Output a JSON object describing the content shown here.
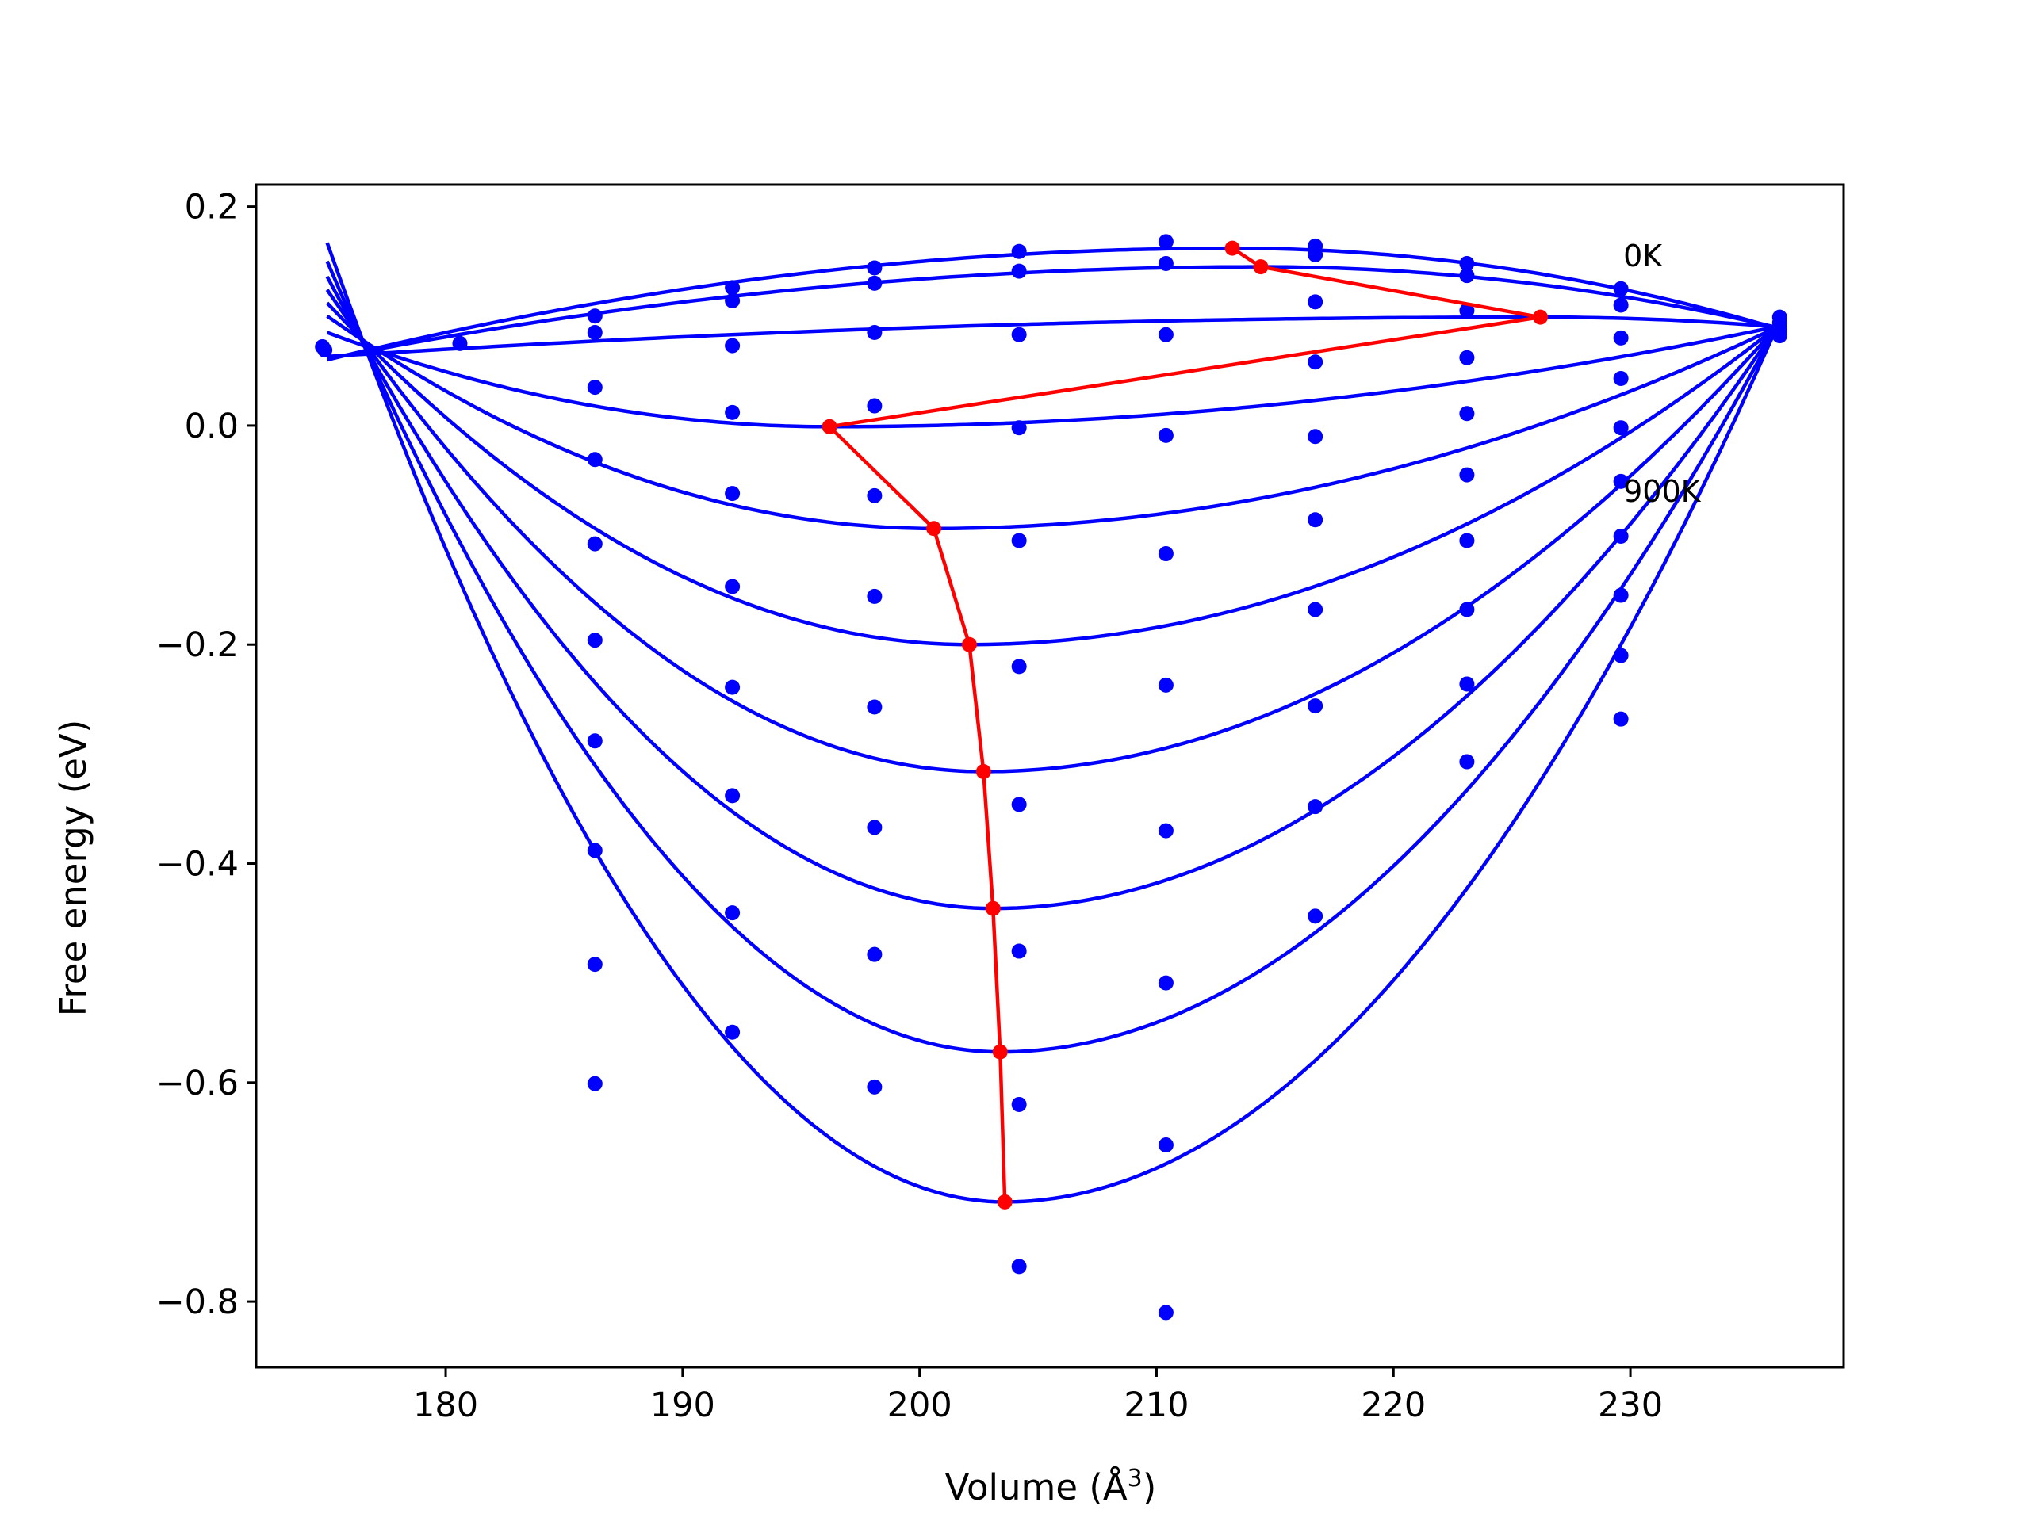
{
  "chart_data": {
    "type": "line",
    "title": "",
    "xlabel": "Volume (Å",
    "xlabel_sup": "3",
    "xlabel_close": ")",
    "ylabel": "Free energy (eV)",
    "xlim": [
      172,
      239
    ],
    "ylim": [
      -0.86,
      0.22
    ],
    "x_ticks": [
      180,
      190,
      200,
      210,
      220,
      230
    ],
    "y_ticks": [
      0.2,
      0.0,
      -0.2,
      -0.4,
      -0.6,
      -0.8
    ],
    "x_tick_labels": [
      "180",
      "190",
      "200",
      "210",
      "220",
      "230"
    ],
    "y_tick_labels": [
      "0.2",
      "0.0",
      "−0.2",
      "−0.4",
      "−0.6",
      "−0.8"
    ],
    "grid": false,
    "colors": {
      "curves": "#0000ff",
      "minima": "#ff0000",
      "frame": "#000000"
    },
    "annotations": [
      {
        "text": "0K",
        "x": 229.7,
        "y": 0.155
      },
      {
        "text": "900K",
        "x": 229.7,
        "y": -0.06
      }
    ],
    "fit_curves": [
      {
        "vmin": 213.2,
        "emin": 0.162,
        "left": [
          175.0,
          0.06
        ],
        "right": [
          236.3,
          0.088
        ]
      },
      {
        "vmin": 214.4,
        "emin": 0.145,
        "left": [
          175.0,
          0.061
        ],
        "right": [
          236.3,
          0.089
        ]
      },
      {
        "vmin": 226.2,
        "emin": 0.099,
        "left": [
          175.0,
          0.063
        ],
        "right": [
          236.3,
          0.09
        ]
      },
      {
        "vmin": 196.2,
        "emin": -0.001,
        "left": [
          175.0,
          0.085
        ],
        "right": [
          236.3,
          0.091
        ]
      },
      {
        "vmin": 200.6,
        "emin": -0.094,
        "left": [
          175.0,
          0.1
        ],
        "right": [
          236.3,
          0.091
        ]
      },
      {
        "vmin": 202.1,
        "emin": -0.2,
        "left": [
          175.0,
          0.112
        ],
        "right": [
          236.3,
          0.092
        ]
      },
      {
        "vmin": 202.7,
        "emin": -0.316,
        "left": [
          175.0,
          0.124
        ],
        "right": [
          236.3,
          0.093
        ]
      },
      {
        "vmin": 203.1,
        "emin": -0.441,
        "left": [
          175.0,
          0.136
        ],
        "right": [
          236.3,
          0.094
        ]
      },
      {
        "vmin": 203.4,
        "emin": -0.572,
        "left": [
          175.0,
          0.15
        ],
        "right": [
          236.3,
          0.095
        ]
      },
      {
        "vmin": 203.6,
        "emin": -0.709,
        "left": [
          175.0,
          0.167
        ],
        "right": [
          236.3,
          0.096
        ]
      }
    ],
    "minima_path": {
      "x": [
        213.2,
        214.4,
        226.2,
        196.2,
        200.6,
        202.1,
        202.7,
        203.1,
        203.4,
        203.6
      ],
      "y": [
        0.162,
        0.145,
        0.099,
        -0.001,
        -0.094,
        -0.2,
        -0.316,
        -0.441,
        -0.572,
        -0.709
      ]
    },
    "data_points": {
      "x": [
        174.8,
        174.9,
        180.6,
        186.3,
        186.3,
        186.3,
        186.3,
        186.3,
        186.3,
        186.3,
        186.3,
        186.3,
        186.3,
        192.1,
        192.1,
        192.1,
        192.1,
        192.1,
        192.1,
        192.1,
        192.1,
        192.1,
        192.1,
        198.1,
        198.1,
        198.1,
        198.1,
        198.1,
        198.1,
        198.1,
        198.1,
        198.1,
        198.1,
        204.2,
        204.2,
        204.2,
        204.2,
        204.2,
        204.2,
        204.2,
        204.2,
        204.2,
        204.2,
        210.4,
        210.4,
        210.4,
        210.4,
        210.4,
        210.4,
        210.4,
        210.4,
        210.4,
        210.4,
        216.7,
        216.7,
        216.7,
        216.7,
        216.7,
        216.7,
        216.7,
        216.7,
        216.7,
        216.7,
        223.1,
        223.1,
        223.1,
        223.1,
        223.1,
        223.1,
        223.1,
        223.1,
        223.1,
        223.1,
        229.6,
        229.6,
        229.6,
        229.6,
        229.6,
        229.6,
        229.6,
        229.6,
        229.6,
        229.6,
        236.3,
        236.3,
        236.3,
        236.3,
        236.3
      ],
      "y": [
        0.072,
        0.069,
        0.075,
        0.1,
        0.085,
        0.035,
        -0.031,
        -0.108,
        -0.196,
        -0.288,
        -0.388,
        -0.492,
        -0.601,
        0.126,
        0.114,
        0.073,
        0.012,
        -0.062,
        -0.147,
        -0.239,
        -0.338,
        -0.445,
        -0.554,
        0.144,
        0.13,
        0.085,
        0.018,
        -0.064,
        -0.156,
        -0.257,
        -0.367,
        -0.483,
        -0.604,
        0.159,
        0.141,
        0.083,
        -0.002,
        -0.105,
        -0.22,
        -0.346,
        -0.48,
        -0.62,
        -0.768,
        0.168,
        0.148,
        0.083,
        -0.009,
        -0.117,
        -0.237,
        -0.37,
        -0.509,
        -0.657,
        -0.81,
        0.164,
        0.156,
        0.113,
        0.058,
        -0.01,
        -0.086,
        -0.168,
        -0.256,
        -0.348,
        -0.448,
        0.148,
        0.137,
        0.105,
        0.062,
        0.011,
        -0.045,
        -0.105,
        -0.168,
        -0.236,
        -0.307,
        0.125,
        0.11,
        0.08,
        0.043,
        -0.002,
        -0.051,
        -0.101,
        -0.155,
        -0.21,
        -0.268,
        0.099,
        0.094,
        0.089,
        0.086,
        0.082
      ]
    }
  }
}
